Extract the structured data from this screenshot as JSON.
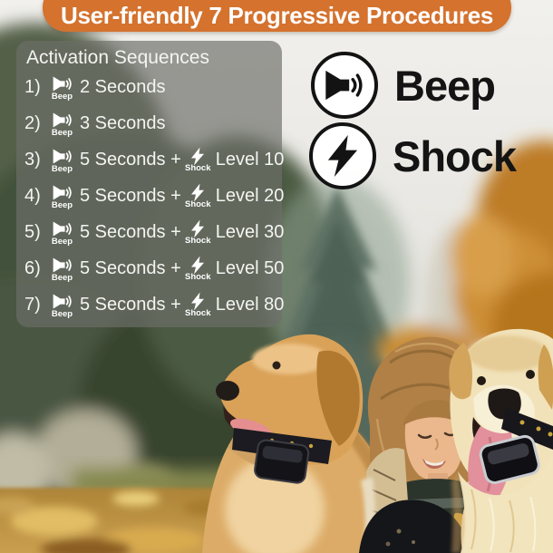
{
  "banner": {
    "title": "User-friendly 7 Progressive Procedures"
  },
  "panel": {
    "heading": "Activation Sequences",
    "beep_caption": "Beep",
    "shock_caption": "Shock",
    "rows": [
      {
        "num": "1)",
        "duration": "2 Seconds",
        "level": ""
      },
      {
        "num": "2)",
        "duration": "3 Seconds",
        "level": ""
      },
      {
        "num": "3)",
        "duration": "5 Seconds +",
        "level": "Level 10"
      },
      {
        "num": "4)",
        "duration": "5 Seconds +",
        "level": "Level 20"
      },
      {
        "num": "5)",
        "duration": "5 Seconds +",
        "level": "Level 30"
      },
      {
        "num": "6)",
        "duration": "5 Seconds +",
        "level": "Level 50"
      },
      {
        "num": "7)",
        "duration": "5 Seconds +",
        "level": "Level 80"
      }
    ]
  },
  "legend": {
    "beep_label": "Beep",
    "shock_label": "Shock"
  },
  "colors": {
    "banner_bg": "#d4722e",
    "banner_text": "#ffffff",
    "panel_bg": "rgba(109,110,105,0.68)",
    "panel_text": "#f4f4f1",
    "legend_text": "#141414",
    "icon_circle_bg": "#ffffff",
    "icon_circle_border": "#131313"
  }
}
